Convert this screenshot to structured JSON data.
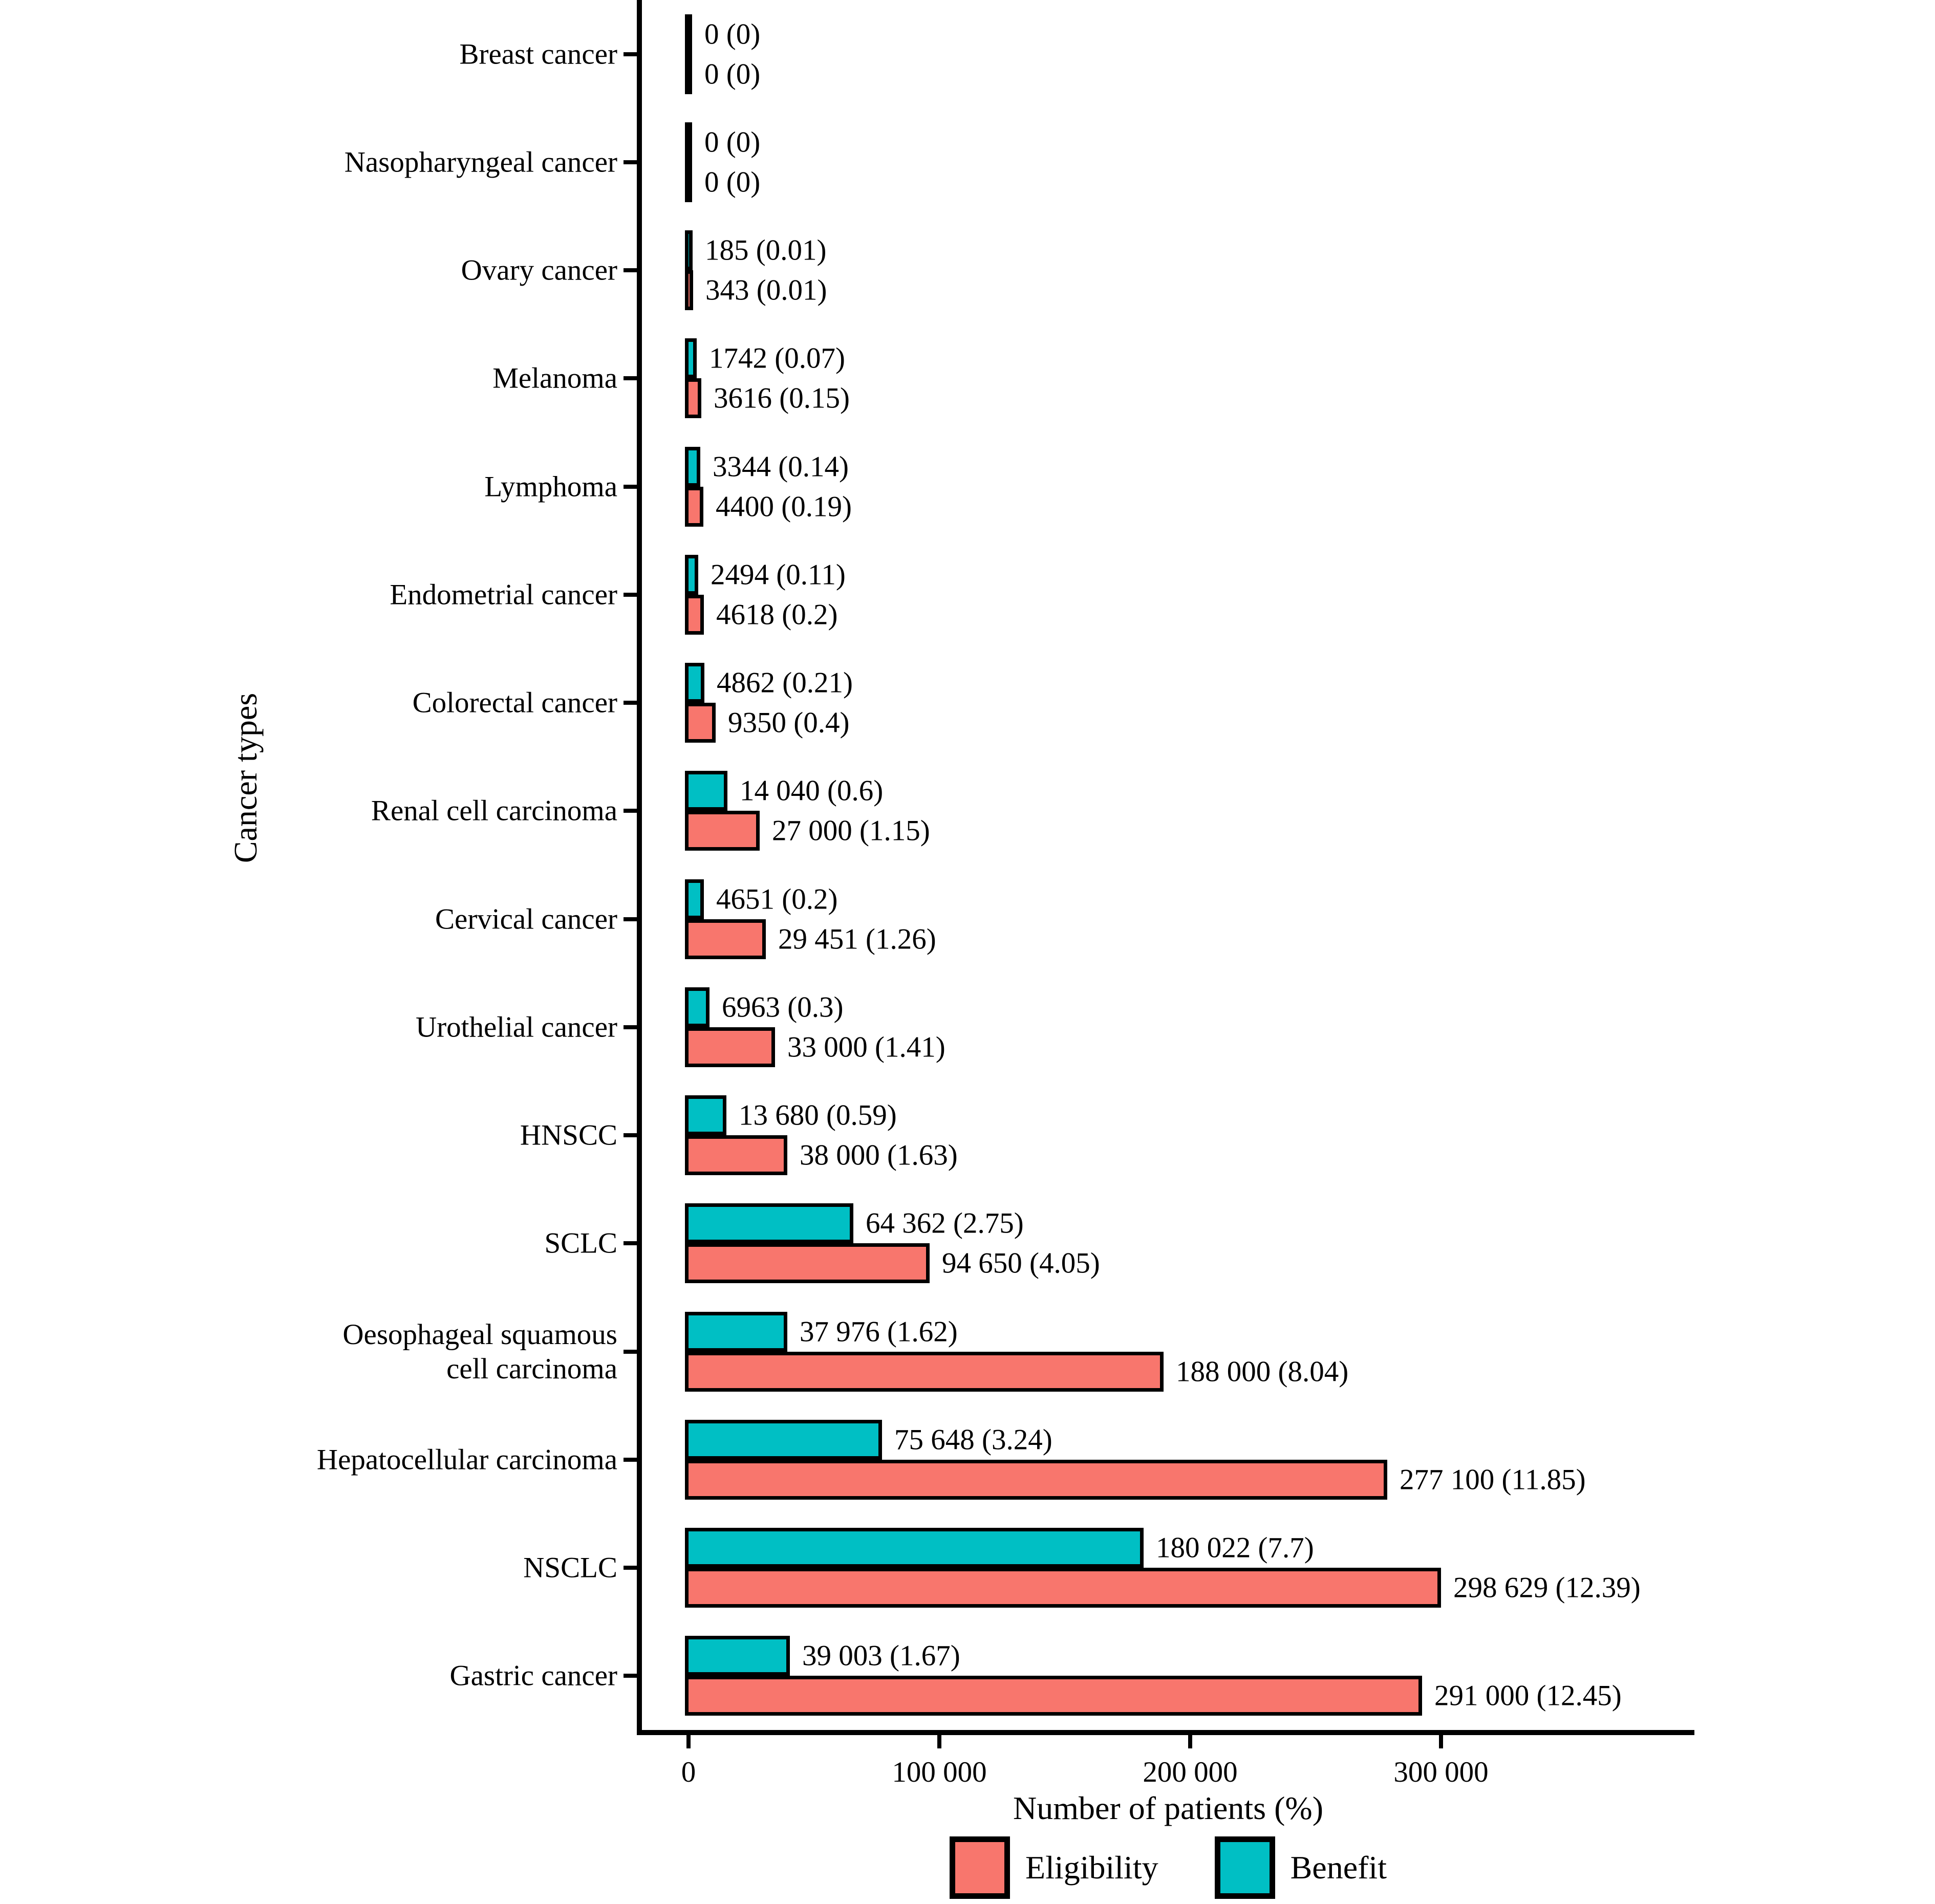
{
  "y_axis": {
    "title": "Cancer types"
  },
  "x_axis": {
    "title": "Number of patients (%)",
    "ticks": [
      {
        "value": 0,
        "label": "0"
      },
      {
        "value": 100000,
        "label": "100 000"
      },
      {
        "value": 200000,
        "label": "200 000"
      },
      {
        "value": 300000,
        "label": "300 000"
      }
    ]
  },
  "legend": {
    "items": [
      {
        "name": "Eligibility",
        "color": "#F8766D"
      },
      {
        "name": "Benefit",
        "color": "#00BFC4"
      }
    ]
  },
  "colors": {
    "eligibility": "#F8766D",
    "benefit": "#00BFC4",
    "bar_border": "#000000",
    "axis": "#000000",
    "background": "#FFFFFF"
  },
  "chart_data": {
    "type": "bar",
    "orientation": "horizontal",
    "title": "",
    "xlabel": "Number of patients (%)",
    "ylabel": "Cancer types",
    "xlim": [
      0,
      390000
    ],
    "grid": false,
    "legend_position": "bottom",
    "bar_outline": "black",
    "series": [
      {
        "name": "Benefit",
        "color": "#00BFC4"
      },
      {
        "name": "Eligibility",
        "color": "#F8766D"
      }
    ],
    "rows": [
      {
        "category": "Breast cancer",
        "benefit": 0,
        "benefit_label": "0 (0)",
        "eligibility": 0,
        "eligibility_label": "0 (0)"
      },
      {
        "category": "Nasopharyngeal cancer",
        "benefit": 0,
        "benefit_label": "0 (0)",
        "eligibility": 0,
        "eligibility_label": "0 (0)"
      },
      {
        "category": "Ovary cancer",
        "benefit": 185,
        "benefit_label": "185 (0.01)",
        "eligibility": 343,
        "eligibility_label": "343 (0.01)"
      },
      {
        "category": "Melanoma",
        "benefit": 1742,
        "benefit_label": "1742 (0.07)",
        "eligibility": 3616,
        "eligibility_label": "3616 (0.15)"
      },
      {
        "category": "Lymphoma",
        "benefit": 3344,
        "benefit_label": "3344 (0.14)",
        "eligibility": 4400,
        "eligibility_label": "4400 (0.19)"
      },
      {
        "category": "Endometrial cancer",
        "benefit": 2494,
        "benefit_label": "2494 (0.11)",
        "eligibility": 4618,
        "eligibility_label": "4618 (0.2)"
      },
      {
        "category": "Colorectal cancer",
        "benefit": 4862,
        "benefit_label": "4862 (0.21)",
        "eligibility": 9350,
        "eligibility_label": "9350 (0.4)"
      },
      {
        "category": "Renal cell carcinoma",
        "benefit": 14040,
        "benefit_label": "14 040 (0.6)",
        "eligibility": 27000,
        "eligibility_label": "27 000 (1.15)"
      },
      {
        "category": "Cervical cancer",
        "benefit": 4651,
        "benefit_label": "4651 (0.2)",
        "eligibility": 29451,
        "eligibility_label": "29 451 (1.26)"
      },
      {
        "category": "Urothelial cancer",
        "benefit": 6963,
        "benefit_label": "6963 (0.3)",
        "eligibility": 33000,
        "eligibility_label": "33 000 (1.41)"
      },
      {
        "category": "HNSCC",
        "benefit": 13680,
        "benefit_label": "13 680 (0.59)",
        "eligibility": 38000,
        "eligibility_label": "38 000 (1.63)"
      },
      {
        "category": "SCLC",
        "benefit": 64362,
        "benefit_label": "64 362 (2.75)",
        "eligibility": 94650,
        "eligibility_label": "94 650 (4.05)"
      },
      {
        "category": "Oesophageal squamous\ncell carcinoma",
        "benefit": 37976,
        "benefit_label": "37 976 (1.62)",
        "eligibility": 188000,
        "eligibility_label": "188 000 (8.04)"
      },
      {
        "category": "Hepatocellular carcinoma",
        "benefit": 75648,
        "benefit_label": "75 648 (3.24)",
        "eligibility": 277100,
        "eligibility_label": "277 100 (11.85)"
      },
      {
        "category": "NSCLC",
        "benefit": 180022,
        "benefit_label": "180 022 (7.7)",
        "eligibility": 298629,
        "eligibility_label": "298 629 (12.39)"
      },
      {
        "category": "Gastric cancer",
        "benefit": 39003,
        "benefit_label": "39 003 (1.67)",
        "eligibility": 291000,
        "eligibility_label": "291 000 (12.45)"
      }
    ]
  }
}
